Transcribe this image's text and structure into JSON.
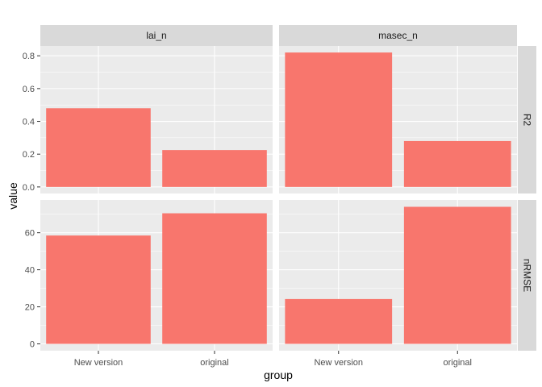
{
  "colors": {
    "bar": "#F8766D",
    "panel_bg": "#EBEBEB",
    "strip_bg": "#D9D9D9",
    "grid_major": "#FFFFFF",
    "tick_color": "#333333"
  },
  "chart_data": {
    "type": "bar",
    "facet": "grid",
    "xlabel": "group",
    "ylabel": "value",
    "categories": [
      "New version",
      "original"
    ],
    "columns": [
      "lai_n",
      "masec_n"
    ],
    "rows": [
      {
        "name": "R2",
        "ylim": [
          -0.04,
          0.86
        ],
        "yticks": [
          0.0,
          0.2,
          0.4,
          0.6,
          0.8
        ],
        "ytick_labels": [
          "0.0",
          "0.2",
          "0.4",
          "0.6",
          "0.8"
        ],
        "values": {
          "lai_n": [
            0.48,
            0.225
          ],
          "masec_n": [
            0.82,
            0.28
          ]
        }
      },
      {
        "name": "nRMSE",
        "ylim": [
          -3.7,
          77.7
        ],
        "yticks": [
          0,
          20,
          40,
          60
        ],
        "ytick_labels": [
          "0",
          "20",
          "40",
          "60"
        ],
        "values": {
          "lai_n": [
            58.5,
            70.5
          ],
          "masec_n": [
            24.2,
            74.0
          ]
        }
      }
    ],
    "grid": true,
    "legend": "none"
  }
}
